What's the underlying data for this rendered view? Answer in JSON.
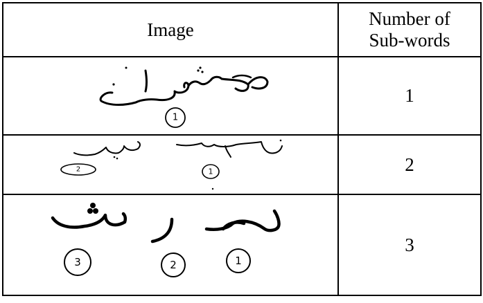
{
  "table": {
    "headers": {
      "image": "Image",
      "count_line1": "Number of",
      "count_line2": "Sub-words"
    },
    "rows": [
      {
        "markers": [
          "1"
        ],
        "count": "1"
      },
      {
        "markers": [
          "1",
          "2"
        ],
        "count": "2"
      },
      {
        "markers": [
          "1",
          "2",
          "3"
        ],
        "count": "3"
      }
    ]
  }
}
